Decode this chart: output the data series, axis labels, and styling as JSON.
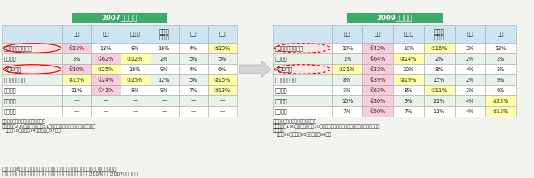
{
  "header_2007": "2007年度調査",
  "header_2009": "2009年度調査",
  "col_headers": [
    "日本",
    "中国",
    "インド",
    "シンガ\nポール",
    "韓国",
    "香港"
  ],
  "row_labels": [
    "アジア地域統括拠点",
    "製造拠点",
    "R＆D拠点",
    "バックオフィス",
    "物流拠点",
    "金融拠点",
    "販売拠点"
  ],
  "data_2007": [
    [
      "①23%",
      "18%",
      "8%",
      "16%",
      "4%",
      "②20%"
    ],
    [
      "3%",
      "①62%",
      "②12%",
      "2%",
      "5%",
      "5%"
    ],
    [
      "①30%",
      "②25%",
      "16%",
      "9%",
      "4%",
      "6%"
    ],
    [
      "②15%",
      "①24%",
      "②15%",
      "12%",
      "5%",
      "②15%"
    ],
    [
      "11%",
      "①41%",
      "8%",
      "9%",
      "7%",
      "②13%"
    ],
    [
      "—",
      "—",
      "—",
      "—",
      "—",
      "—"
    ],
    [
      "—",
      "—",
      "—",
      "—",
      "—",
      "—"
    ]
  ],
  "data_2009": [
    [
      "10%",
      "①42%",
      "10%",
      "②16%",
      "2%",
      "13%"
    ],
    [
      "1%",
      "①64%",
      "②14%",
      "2%",
      "2%",
      "2%"
    ],
    [
      "②21%",
      "①33%",
      "20%",
      "8%",
      "4%",
      "2%"
    ],
    [
      "8%",
      "①39%",
      "②19%",
      "15%",
      "2%",
      "9%"
    ],
    [
      "3%",
      "①63%",
      "8%",
      "②11%",
      "2%",
      "6%"
    ],
    [
      "10%",
      "①30%",
      "9%",
      "21%",
      "4%",
      "②23%"
    ],
    [
      "7%",
      "①50%",
      "7%",
      "11%",
      "4%",
      "②13%"
    ]
  ],
  "highlight_2007": {
    "0": {
      "0": "pink",
      "5": "yellow"
    },
    "1": {
      "1": "pink",
      "2": "yellow"
    },
    "2": {
      "0": "pink",
      "1": "yellow"
    },
    "3": {
      "1": "pink",
      "0": "yellow",
      "2": "yellow",
      "5": "yellow"
    },
    "4": {
      "1": "pink",
      "5": "yellow"
    }
  },
  "highlight_2009": {
    "0": {
      "1": "pink",
      "3": "yellow"
    },
    "1": {
      "1": "pink",
      "2": "yellow"
    },
    "2": {
      "0": "yellow",
      "1": "pink"
    },
    "3": {
      "1": "pink",
      "2": "yellow"
    },
    "4": {
      "1": "pink",
      "3": "yellow"
    },
    "5": {
      "1": "pink",
      "5": "yellow"
    },
    "6": {
      "1": "pink",
      "5": "yellow"
    }
  },
  "red_solid_rows": [
    0,
    2
  ],
  "red_dashed_rows": [
    0,
    2
  ],
  "fn_l1": "＊各拠点ごとに国・地域を１つ選択",
  "fn_l2": "＊回答企業209社（日本進出済51社含む）から無回答企業を除く百分率",
  "fn_l3": "（欧州78社、北米74社、アジア57社）",
  "fn_r1": "＊各拠点ごとに国・地域を１つ選択",
  "fn_r2": "＊回答企業180社（日本進出済30社含む）から無回答（該当国なし含む）企業を除",
  "fn_r3": "く百分率",
  "fn_r4": "（欧州60社、北米60社、アジア60社）",
  "bot1": "備考：主要6か国の数値のみ抽出、各拠点機能の１位、２位にマーカーを付している。",
  "bot2": "資料：経済産業省「欧米アジアの外国企業の対日投資関心度調査（2009年度、2007年度）」。",
  "bg": "#f2f2ee",
  "tbl_bg_even": "#ffffff",
  "tbl_bg_odd": "#e8f2e8",
  "col_hdr_bg": "#cce5f0",
  "label_red_bg": "#fde8e8",
  "pink_bg": "#f8ccdd",
  "yellow_bg": "#ffffaa",
  "green_hdr": "#3daa6e",
  "border": "#aaaaaa",
  "text": "#222222"
}
